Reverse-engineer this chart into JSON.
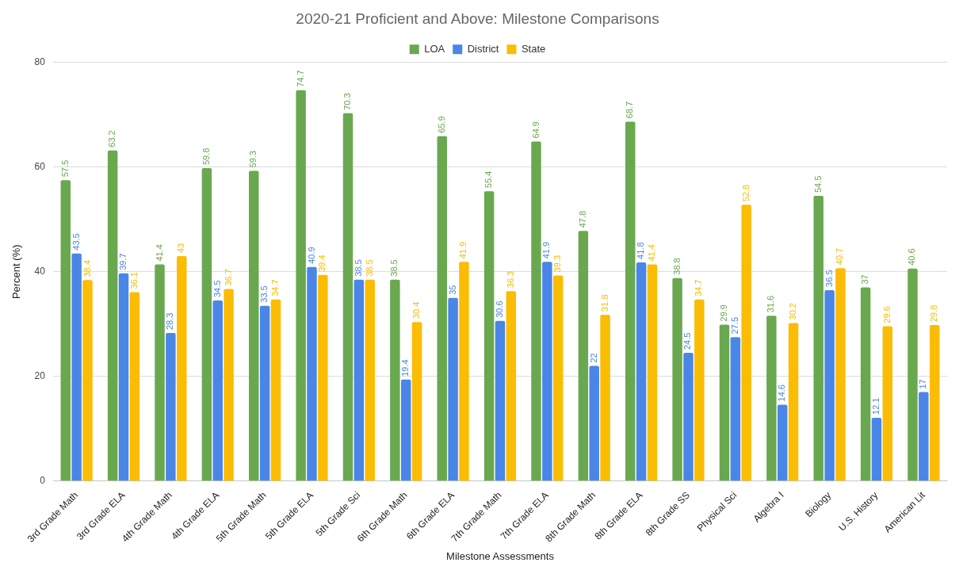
{
  "chart_data": {
    "type": "bar",
    "title": "2020-21 Proficient and Above: Milestone Comparisons",
    "xlabel": "Milestone Assessments",
    "ylabel": "Percent (%)",
    "categories": [
      "3rd Grade Math",
      "3rd Grade ELA",
      "4th Grade Math",
      "4th Grade ELA",
      "5th Grade Math",
      "5th Grade ELA",
      "5th Grade Sci",
      "6th Grade Math",
      "6th Grade ELA",
      "7th Grade Math",
      "7th Grade ELA",
      "8th Grade Math",
      "8th Grade ELA",
      "8th Grade SS",
      "Physical Sci",
      "Algebra I",
      "Biology",
      "U.S. History",
      "American Lit"
    ],
    "series": [
      {
        "name": "LOA",
        "color": "#6aa84f",
        "values": [
          57.5,
          63.2,
          41.4,
          59.8,
          59.3,
          74.7,
          70.3,
          38.5,
          65.9,
          55.4,
          64.9,
          47.8,
          68.7,
          38.8,
          29.9,
          31.6,
          54.5,
          37,
          40.6
        ]
      },
      {
        "name": "District",
        "color": "#4a86e8",
        "values": [
          43.5,
          39.7,
          28.3,
          34.5,
          33.5,
          40.9,
          38.5,
          19.4,
          35,
          30.6,
          41.9,
          22,
          41.8,
          24.5,
          27.5,
          14.6,
          36.5,
          12.1,
          17
        ]
      },
      {
        "name": "State",
        "color": "#fbbc04",
        "values": [
          38.4,
          36.1,
          43,
          36.7,
          34.7,
          39.4,
          38.5,
          30.4,
          41.9,
          36.3,
          39.3,
          31.8,
          41.4,
          34.7,
          52.8,
          30.2,
          40.7,
          29.6,
          29.8
        ]
      }
    ],
    "ylim": [
      0,
      80
    ],
    "yticks": [
      0,
      20,
      40,
      60,
      80
    ],
    "grid": "y",
    "legend": "top",
    "data_labels": true
  }
}
